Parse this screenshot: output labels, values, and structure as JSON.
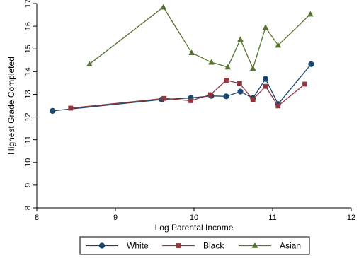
{
  "chart_data": {
    "type": "line",
    "xlabel": "Log Parental Income",
    "ylabel": "Highest Grade Completed",
    "xlim": [
      8,
      12
    ],
    "ylim": [
      8,
      17
    ],
    "xticks": [
      8,
      9,
      10,
      11,
      12
    ],
    "yticks": [
      8,
      9,
      10,
      11,
      12,
      13,
      14,
      15,
      16,
      17
    ],
    "grid": false,
    "legend_position": "bottom",
    "series": [
      {
        "name": "White",
        "color": "#1a476f",
        "marker": "circle",
        "x": [
          8.2,
          9.59,
          9.96,
          10.22,
          10.41,
          10.59,
          10.75,
          10.91,
          11.07,
          11.49
        ],
        "y": [
          12.27,
          12.77,
          12.84,
          12.93,
          12.91,
          13.12,
          12.83,
          13.68,
          12.57,
          14.33
        ]
      },
      {
        "name": "Black",
        "color": "#90353b",
        "marker": "square",
        "x": [
          8.43,
          9.62,
          9.96,
          10.21,
          10.41,
          10.58,
          10.75,
          10.91,
          11.07,
          11.41
        ],
        "y": [
          12.39,
          12.82,
          12.72,
          12.98,
          13.62,
          13.48,
          12.77,
          13.35,
          12.49,
          13.45
        ]
      },
      {
        "name": "Asian",
        "color": "#55752f",
        "marker": "triangle",
        "x": [
          8.67,
          9.61,
          9.97,
          10.22,
          10.43,
          10.59,
          10.75,
          10.91,
          11.07,
          11.48
        ],
        "y": [
          14.33,
          16.84,
          14.83,
          14.41,
          14.2,
          15.42,
          14.14,
          15.95,
          15.16,
          16.53
        ]
      }
    ]
  }
}
